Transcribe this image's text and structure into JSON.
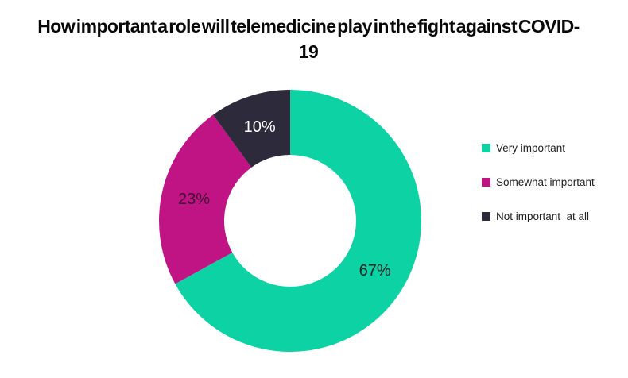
{
  "title": {
    "text": "How important a role will telemedicine play in the fight against COVID-19",
    "lines": [
      "How important a role will telemedicine play in the fight against COVID-",
      "19"
    ]
  },
  "chart_data": {
    "type": "pie",
    "subtype": "donut",
    "title": "How important a role will telemedicine play in the fight against COVID-19",
    "categories": [
      "Very important",
      "Somewhat important",
      "Not important at all"
    ],
    "values": [
      67,
      23,
      10
    ],
    "unit": "%",
    "data_labels": [
      "67%",
      "23%",
      "10%"
    ],
    "colors": [
      "#0DD2A3",
      "#C01384",
      "#2D2A3B"
    ],
    "label_colors": [
      "#252328",
      "#39122E",
      "#FFFFFF"
    ],
    "legend_labels": [
      "Very important",
      "Somewhat important",
      "Not important  at all"
    ],
    "start_angle_deg": 0,
    "direction": "clockwise",
    "inner_radius_ratio": 0.5,
    "legend_position": "right",
    "background": "#FFFFFF"
  }
}
